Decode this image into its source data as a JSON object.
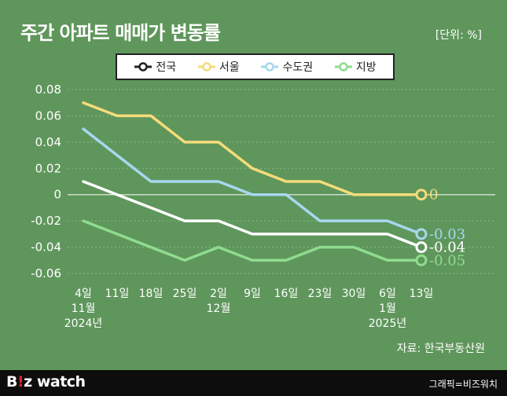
{
  "header": {
    "title": "주간 아파트 매매가 변동률",
    "unit": "[단위: %]"
  },
  "colors": {
    "background": "#5f965c",
    "grid": "#8cb889",
    "zero_line": "#c9dcc6",
    "axis_text": "#ffffff",
    "footer": "#0d0d0d",
    "brand_accent": "#e8202a"
  },
  "chart_data": {
    "type": "line",
    "title": "주간 아파트 매매가 변동률",
    "ylabel": "",
    "xlabel": "",
    "ylim": [
      -0.06,
      0.08
    ],
    "yticks": [
      0.08,
      0.06,
      0.04,
      0.02,
      0,
      -0.02,
      -0.04,
      -0.06
    ],
    "ytick_labels": [
      "0.08",
      "0.06",
      "0.04",
      "0.02",
      "0",
      "-0.02",
      "-0.04",
      "-0.06"
    ],
    "grid": true,
    "legend_position": "top",
    "categories": [
      "4일",
      "11일",
      "18일",
      "25일",
      "2일",
      "9일",
      "16일",
      "23일",
      "30일",
      "6일",
      "13일"
    ],
    "category_sublabels": [
      [
        "11월",
        "2024년"
      ],
      [],
      [],
      [],
      [
        "12월"
      ],
      [],
      [],
      [],
      [],
      [
        "1월",
        "2025년"
      ],
      []
    ],
    "series": [
      {
        "name": "전국",
        "color": "#ffffff",
        "values": [
          0.01,
          0.0,
          -0.01,
          -0.02,
          -0.02,
          -0.03,
          -0.03,
          -0.03,
          -0.03,
          -0.03,
          -0.04
        ],
        "end_label": "-0.04"
      },
      {
        "name": "서울",
        "color": "#f5dc7a",
        "values": [
          0.07,
          0.06,
          0.06,
          0.04,
          0.04,
          0.02,
          0.01,
          0.01,
          0.0,
          0.0,
          0.0
        ],
        "end_label": "0"
      },
      {
        "name": "수도권",
        "color": "#a7d8ee",
        "values": [
          0.05,
          0.03,
          0.01,
          0.01,
          0.01,
          0.0,
          0.0,
          -0.02,
          -0.02,
          -0.02,
          -0.03
        ],
        "end_label": "-0.03"
      },
      {
        "name": "지방",
        "color": "#8fdc8f",
        "values": [
          -0.02,
          -0.03,
          -0.04,
          -0.05,
          -0.04,
          -0.05,
          -0.05,
          -0.04,
          -0.04,
          -0.05,
          -0.05
        ],
        "end_label": "-0.05"
      }
    ]
  },
  "source": "자료: 한국부동산원",
  "footer": {
    "brand_b": "B",
    "brand_accent": "!",
    "brand_z": "z",
    "brand_rest": " watch",
    "credit": "그래픽=비즈워치"
  }
}
